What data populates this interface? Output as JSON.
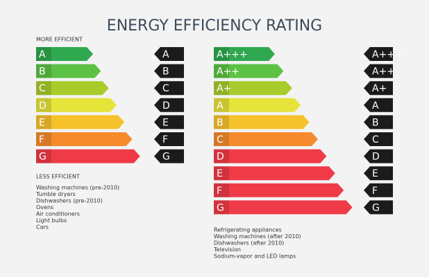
{
  "title": "ENERGY EFFICIENCY RATING",
  "left_scale": {
    "top_label": "MORE EFFICIENT",
    "bottom_label": "LESS EFFICIENT",
    "classes": [
      {
        "label": "A",
        "color": "#2fa84f"
      },
      {
        "label": "B",
        "color": "#5cc144"
      },
      {
        "label": "C",
        "color": "#a7cc2c"
      },
      {
        "label": "D",
        "color": "#e6e33a"
      },
      {
        "label": "E",
        "color": "#f6c22c"
      },
      {
        "label": "F",
        "color": "#f58b2d"
      },
      {
        "label": "G",
        "color": "#ef3b48"
      }
    ],
    "ratings": [
      "A",
      "B",
      "C",
      "D",
      "E",
      "F",
      "G"
    ],
    "appliances": [
      "Washing machines (pre-2010)",
      "Tumble dryers",
      "Dishwashers (pre-2010)",
      "Ovens",
      "Air conditioners",
      "Light bulbs",
      "Cars"
    ]
  },
  "right_scale": {
    "classes": [
      {
        "label": "A+++",
        "color": "#2fa84f"
      },
      {
        "label": "A++",
        "color": "#5cc144"
      },
      {
        "label": "A+",
        "color": "#a7cc2c"
      },
      {
        "label": "A",
        "color": "#e6e33a"
      },
      {
        "label": "B",
        "color": "#f6c22c"
      },
      {
        "label": "C",
        "color": "#f58b2d"
      },
      {
        "label": "D",
        "color": "#ef3b48"
      },
      {
        "label": "E",
        "color": "#ef3b48"
      },
      {
        "label": "F",
        "color": "#ef3b48"
      },
      {
        "label": "G",
        "color": "#ef3b48"
      }
    ],
    "ratings": [
      "A+++",
      "A++",
      "A+",
      "A",
      "B",
      "C",
      "D",
      "E",
      "F",
      "G"
    ],
    "appliances": [
      "Refrigerating appliances",
      "Washing machines (after 2010)",
      "Dishwashers (after 2010)",
      "Television",
      "Sodium-vapor and LED lamps"
    ]
  }
}
